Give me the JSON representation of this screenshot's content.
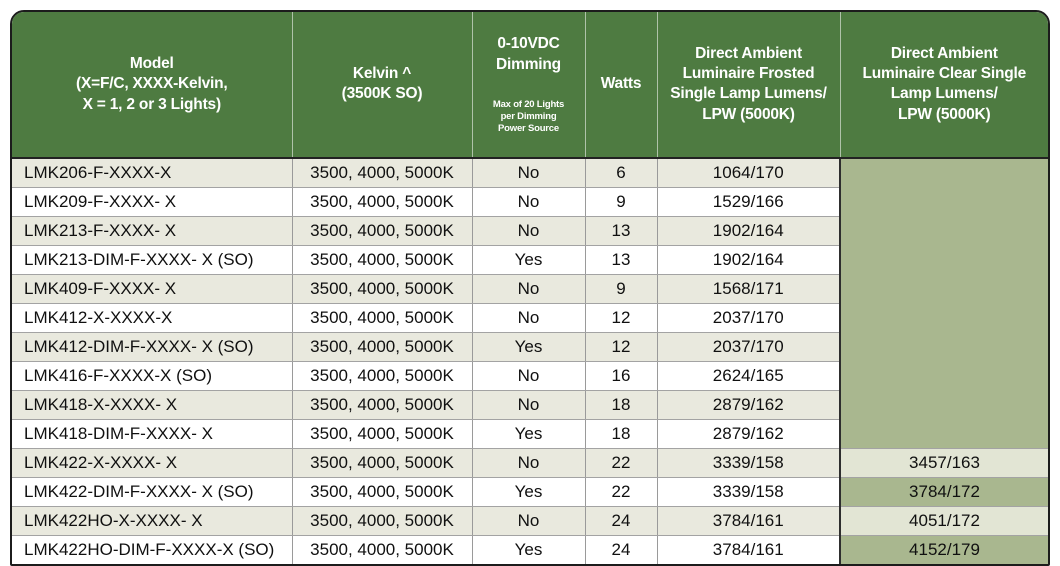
{
  "colors": {
    "header_green": "#4e7b41",
    "sage": "#a9b78f",
    "light_sage": "#e2e5d4",
    "row_beige": "#e9e9de",
    "outer_border": "#1c1c1c"
  },
  "table": {
    "headers": {
      "model": "Model\n(X=F/C, XXXX-Kelvin,\nX = 1, 2 or 3 Lights)",
      "kelvin": "Kelvin ^\n(3500K SO)",
      "dimming_main": "0-10VDC\nDimming",
      "dimming_sub": "Max of 20 Lights\nper Dimming\nPower Source",
      "watts": "Watts",
      "frosted": "Direct Ambient\nLuminaire Frosted\nSingle Lamp Lumens/\nLPW (5000K)",
      "clear": "Direct Ambient\nLuminaire Clear Single\nLamp Lumens/\nLPW (5000K)"
    },
    "merged_clear_rows": 10,
    "rows": [
      {
        "model": "LMK206-F-XXXX-X",
        "kelvin": "3500, 4000, 5000K",
        "dimming": "No",
        "watts": "6",
        "frosted": "1064/170",
        "clear": "",
        "clear_shade": null
      },
      {
        "model": "LMK209-F-XXXX- X",
        "kelvin": "3500, 4000, 5000K",
        "dimming": "No",
        "watts": "9",
        "frosted": "1529/166",
        "clear": "",
        "clear_shade": null
      },
      {
        "model": "LMK213-F-XXXX- X",
        "kelvin": "3500, 4000, 5000K",
        "dimming": "No",
        "watts": "13",
        "frosted": "1902/164",
        "clear": "",
        "clear_shade": null
      },
      {
        "model": "LMK213-DIM-F-XXXX- X (SO)",
        "kelvin": "3500, 4000, 5000K",
        "dimming": "Yes",
        "watts": "13",
        "frosted": "1902/164",
        "clear": "",
        "clear_shade": null
      },
      {
        "model": "LMK409-F-XXXX- X",
        "kelvin": "3500, 4000, 5000K",
        "dimming": "No",
        "watts": "9",
        "frosted": "1568/171",
        "clear": "",
        "clear_shade": null
      },
      {
        "model": "LMK412-X-XXXX-X",
        "kelvin": "3500, 4000, 5000K",
        "dimming": "No",
        "watts": "12",
        "frosted": "2037/170",
        "clear": "",
        "clear_shade": null
      },
      {
        "model": "LMK412-DIM-F-XXXX- X (SO)",
        "kelvin": "3500, 4000, 5000K",
        "dimming": "Yes",
        "watts": "12",
        "frosted": "2037/170",
        "clear": "",
        "clear_shade": null
      },
      {
        "model": "LMK416-F-XXXX-X (SO)",
        "kelvin": "3500, 4000, 5000K",
        "dimming": "No",
        "watts": "16",
        "frosted": "2624/165",
        "clear": "",
        "clear_shade": null
      },
      {
        "model": "LMK418-X-XXXX- X",
        "kelvin": "3500, 4000, 5000K",
        "dimming": "No",
        "watts": "18",
        "frosted": "2879/162",
        "clear": "",
        "clear_shade": null
      },
      {
        "model": "LMK418-DIM-F-XXXX- X",
        "kelvin": "3500, 4000, 5000K",
        "dimming": "Yes",
        "watts": "18",
        "frosted": "2879/162",
        "clear": "",
        "clear_shade": null
      },
      {
        "model": "LMK422-X-XXXX- X",
        "kelvin": "3500, 4000, 5000K",
        "dimming": "No",
        "watts": "22",
        "frosted": "3339/158",
        "clear": "3457/163",
        "clear_shade": "light"
      },
      {
        "model": "LMK422-DIM-F-XXXX- X (SO)",
        "kelvin": "3500, 4000, 5000K",
        "dimming": "Yes",
        "watts": "22",
        "frosted": "3339/158",
        "clear": "3784/172",
        "clear_shade": "dark"
      },
      {
        "model": "LMK422HO-X-XXXX- X",
        "kelvin": "3500, 4000, 5000K",
        "dimming": "No",
        "watts": "24",
        "frosted": "3784/161",
        "clear": "4051/172",
        "clear_shade": "light"
      },
      {
        "model": "LMK422HO-DIM-F-XXXX-X (SO)",
        "kelvin": "3500, 4000, 5000K",
        "dimming": "Yes",
        "watts": "24",
        "frosted": "3784/161",
        "clear": "4152/179",
        "clear_shade": "dark"
      }
    ]
  }
}
